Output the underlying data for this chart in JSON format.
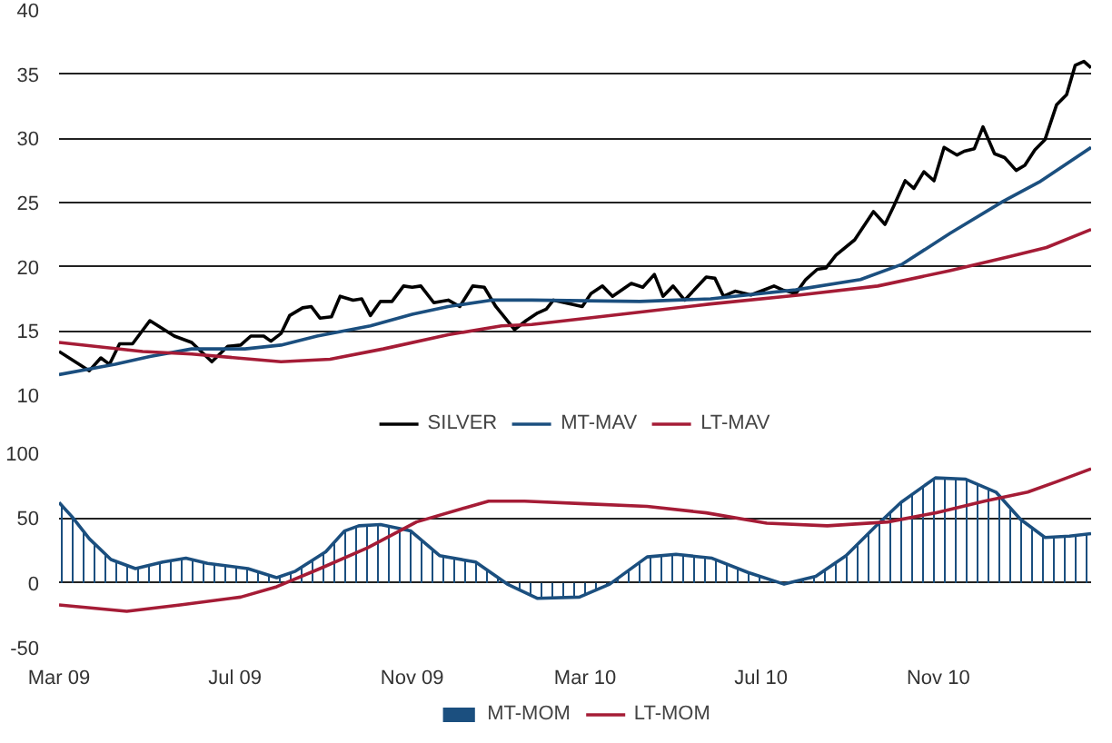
{
  "chart_data": [
    {
      "type": "line",
      "xlim": [
        "2009-03-01",
        "2011-02-15"
      ],
      "ylim": [
        10,
        40
      ],
      "yticks": [
        10,
        15,
        20,
        25,
        30,
        35,
        40
      ],
      "grid": "y",
      "legend": "bottom",
      "tick_labels": "y",
      "series": [
        {
          "name": "SILVER",
          "color": "#000000",
          "x": [
            "2009-03-01",
            "2009-03-22",
            "2009-03-30",
            "2009-04-05",
            "2009-04-12",
            "2009-04-21",
            "2009-05-03",
            "2009-05-20",
            "2009-06-01",
            "2009-06-15",
            "2009-06-26",
            "2009-07-05",
            "2009-07-12",
            "2009-07-21",
            "2009-07-26",
            "2009-08-02",
            "2009-08-08",
            "2009-08-17",
            "2009-08-23",
            "2009-08-29",
            "2009-09-06",
            "2009-09-12",
            "2009-09-21",
            "2009-09-27",
            "2009-10-03",
            "2009-10-10",
            "2009-10-18",
            "2009-10-26",
            "2009-11-01",
            "2009-11-07",
            "2009-11-16",
            "2009-11-26",
            "2009-12-04",
            "2009-12-13",
            "2009-12-21",
            "2009-12-29",
            "2010-01-11",
            "2010-01-19",
            "2010-01-27",
            "2010-02-02",
            "2010-02-07",
            "2010-02-27",
            "2010-03-05",
            "2010-03-13",
            "2010-03-20",
            "2010-04-02",
            "2010-04-10",
            "2010-04-18",
            "2010-04-24",
            "2010-05-01",
            "2010-05-09",
            "2010-05-24",
            "2010-05-30",
            "2010-06-05",
            "2010-06-13",
            "2010-06-24",
            "2010-07-01",
            "2010-07-10",
            "2010-07-16",
            "2010-07-25",
            "2010-08-01",
            "2010-08-09",
            "2010-08-15",
            "2010-08-22",
            "2010-09-04",
            "2010-09-17",
            "2010-09-25",
            "2010-10-01",
            "2010-10-09",
            "2010-10-15",
            "2010-10-22",
            "2010-10-29",
            "2010-11-05",
            "2010-11-14",
            "2010-11-19",
            "2010-11-26",
            "2010-12-02",
            "2010-12-10",
            "2010-12-17",
            "2010-12-25",
            "2010-12-31",
            "2011-01-07",
            "2011-01-14",
            "2011-01-22",
            "2011-01-29",
            "2011-02-04",
            "2011-02-10",
            "2011-02-15"
          ],
          "values": [
            13.4,
            11.9,
            12.9,
            12.4,
            14.0,
            14.0,
            15.8,
            14.6,
            14.1,
            12.6,
            13.8,
            13.9,
            14.6,
            14.6,
            14.2,
            14.8,
            16.2,
            16.8,
            16.9,
            16.0,
            16.1,
            17.7,
            17.4,
            17.5,
            16.2,
            17.3,
            17.3,
            18.5,
            18.4,
            18.5,
            17.2,
            17.4,
            16.9,
            18.5,
            18.4,
            16.9,
            15.1,
            15.8,
            16.4,
            16.7,
            17.4,
            16.9,
            17.9,
            18.5,
            17.7,
            18.7,
            18.4,
            19.4,
            17.7,
            18.5,
            17.4,
            19.2,
            19.1,
            17.7,
            18.1,
            17.8,
            18.1,
            18.5,
            18.2,
            17.9,
            19.0,
            19.8,
            19.9,
            20.9,
            22.1,
            24.3,
            23.3,
            24.7,
            26.7,
            26.1,
            27.4,
            26.7,
            29.3,
            28.7,
            29.0,
            29.2,
            30.9,
            28.8,
            28.5,
            27.5,
            27.9,
            29.1,
            29.9,
            32.6,
            33.4,
            35.7,
            36.0,
            35.5
          ]
        },
        {
          "name": "MT-MAV",
          "color": "#1b4f7f",
          "x": [
            "2009-03-01",
            "2009-04-09",
            "2009-05-03",
            "2009-06-01",
            "2009-07-08",
            "2009-08-02",
            "2009-08-27",
            "2009-10-03",
            "2009-11-01",
            "2009-11-26",
            "2009-12-26",
            "2010-01-23",
            "2010-04-08",
            "2010-05-27",
            "2010-07-25",
            "2010-09-08",
            "2010-10-07",
            "2010-11-09",
            "2010-12-16",
            "2011-01-10",
            "2011-02-15"
          ],
          "values": [
            11.6,
            12.4,
            13.0,
            13.6,
            13.6,
            13.9,
            14.6,
            15.4,
            16.3,
            16.9,
            17.4,
            17.4,
            17.3,
            17.5,
            18.2,
            19.0,
            20.2,
            22.6,
            25.1,
            26.6,
            29.3
          ]
        },
        {
          "name": "LT-MAV",
          "color": "#a51c36",
          "x": [
            "2009-03-01",
            "2009-04-28",
            "2009-06-01",
            "2009-08-02",
            "2009-09-05",
            "2009-10-12",
            "2009-11-26",
            "2010-01-02",
            "2010-01-23",
            "2010-03-26",
            "2010-05-27",
            "2010-07-28",
            "2010-09-20",
            "2010-11-09",
            "2010-12-21",
            "2011-01-15",
            "2011-02-15"
          ],
          "values": [
            14.1,
            13.4,
            13.2,
            12.6,
            12.8,
            13.6,
            14.7,
            15.4,
            15.5,
            16.3,
            17.1,
            17.8,
            18.5,
            19.7,
            20.8,
            21.5,
            22.9
          ]
        }
      ]
    },
    {
      "type": "line",
      "xlim": [
        "2009-03-01",
        "2011-02-15"
      ],
      "xticks": [
        {
          "value": "2009-03-01",
          "label": "Mar 09"
        },
        {
          "value": "2009-07-01",
          "label": "Jul 09"
        },
        {
          "value": "2009-11-01",
          "label": "Nov 09"
        },
        {
          "value": "2010-03-01",
          "label": "Mar 10"
        },
        {
          "value": "2010-07-01",
          "label": "Jul 10"
        },
        {
          "value": "2010-11-01",
          "label": "Nov 10"
        }
      ],
      "ylim": [
        -50,
        100
      ],
      "yticks": [
        -50,
        0,
        50,
        100
      ],
      "grid": "y",
      "legend": "bottom",
      "series": [
        {
          "name": "MT-MOM",
          "type": "area",
          "color": "#1b4f7f",
          "x": [
            "2009-03-01",
            "2009-03-10",
            "2009-03-22",
            "2009-04-06",
            "2009-04-23",
            "2009-05-12",
            "2009-05-28",
            "2009-06-12",
            "2009-07-10",
            "2009-07-30",
            "2009-08-12",
            "2009-09-02",
            "2009-09-15",
            "2009-09-25",
            "2009-10-10",
            "2009-10-31",
            "2009-11-20",
            "2009-12-15",
            "2010-01-06",
            "2010-01-27",
            "2010-02-25",
            "2010-03-18",
            "2010-04-13",
            "2010-05-03",
            "2010-05-28",
            "2010-06-22",
            "2010-07-17",
            "2010-08-08",
            "2010-08-29",
            "2010-09-18",
            "2010-10-06",
            "2010-10-30",
            "2010-11-20",
            "2010-12-11",
            "2010-12-28",
            "2011-01-14",
            "2011-01-31",
            "2011-02-15"
          ],
          "values": [
            62,
            51,
            34,
            18,
            11,
            16,
            19,
            15,
            11,
            4,
            9,
            24,
            40,
            44,
            45,
            40,
            21,
            16,
            -1,
            -12,
            -11,
            -1,
            20,
            22,
            19,
            8,
            -1,
            5,
            21,
            43,
            62,
            81,
            80,
            70,
            49,
            35,
            36,
            38
          ]
        },
        {
          "name": "LT-MOM",
          "color": "#a51c36",
          "x": [
            "2009-03-01",
            "2009-04-17",
            "2009-05-24",
            "2009-07-05",
            "2009-07-30",
            "2009-08-29",
            "2009-10-01",
            "2009-11-04",
            "2009-12-08",
            "2009-12-24",
            "2010-01-18",
            "2010-03-01",
            "2010-04-13",
            "2010-05-24",
            "2010-07-05",
            "2010-08-16",
            "2010-09-27",
            "2010-10-30",
            "2010-12-03",
            "2011-01-02",
            "2011-01-22",
            "2011-02-15"
          ],
          "values": [
            -17,
            -22,
            -17,
            -11,
            -3,
            11,
            27,
            47,
            58,
            63,
            63,
            61,
            59,
            54,
            46,
            44,
            47,
            54,
            63,
            70,
            78,
            88
          ]
        }
      ]
    }
  ]
}
